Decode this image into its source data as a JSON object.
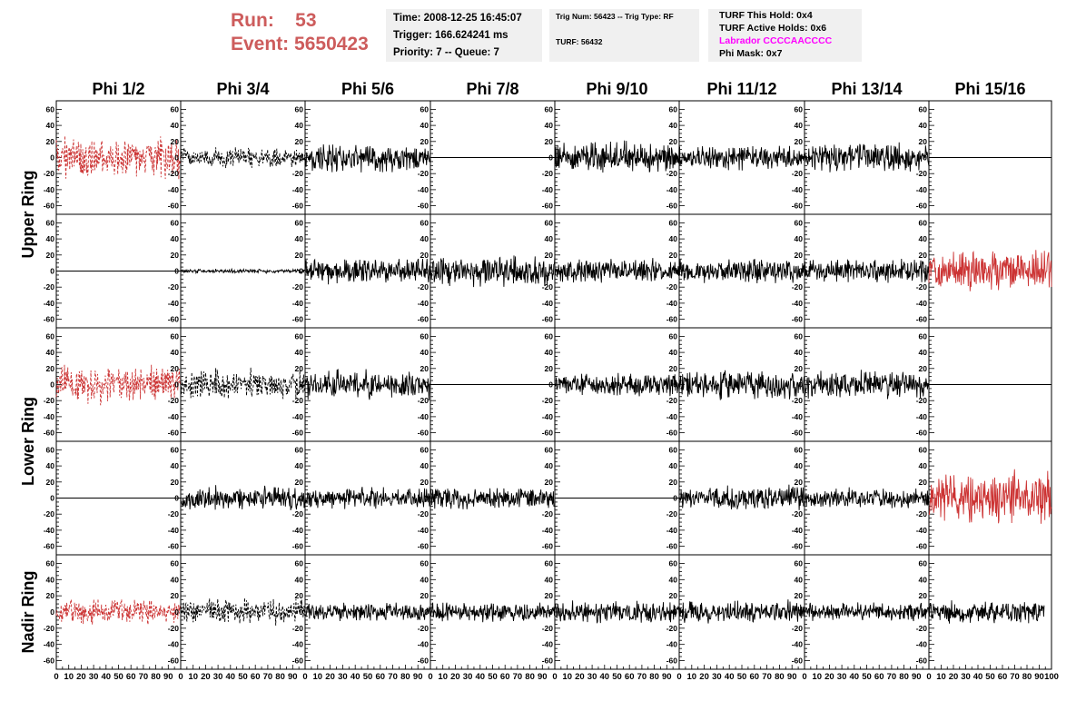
{
  "header": {
    "run_label": "Run:",
    "run_value": "53",
    "event_label": "Event:",
    "event_value": "5650423",
    "time": "Time: 2008-12-25 16:45:07",
    "trigger": "Trigger: 166.624241 ms",
    "priority": "Priority: 7 -- Queue: 7",
    "trig_num": "Trig Num: 56423 -- Trig Type: RF",
    "turf": "TURF: 56432",
    "turf_this_hold": "TURF This Hold: 0x4",
    "turf_active_holds": "TURF Active Holds: 0x6",
    "labrador": "Labrador CCCCAACCCC",
    "phi_mask": "Phi Mask: 0x7"
  },
  "colors": {
    "red": "#cc3333",
    "black": "#000000",
    "magenta": "#ff00ff",
    "run_text": "#cd5c5c"
  },
  "chart_data": {
    "type": "line",
    "title": "",
    "columns": [
      "Phi 1/2",
      "Phi 3/4",
      "Phi 5/6",
      "Phi 7/8",
      "Phi 9/10",
      "Phi 11/12",
      "Phi 13/14",
      "Phi 15/16"
    ],
    "ring_labels": [
      {
        "text": "Upper Ring",
        "rows": [
          0,
          1
        ]
      },
      {
        "text": "Lower Ring",
        "rows": [
          2,
          3
        ]
      },
      {
        "text": "Nadir Ring",
        "rows": [
          4,
          4
        ]
      }
    ],
    "ylim": [
      -65,
      65
    ],
    "yticks": [
      "60",
      "40",
      "20",
      "0",
      "-20",
      "-40",
      "-60"
    ],
    "xlim": [
      0,
      100
    ],
    "xticks": [
      "0",
      "10",
      "20",
      "30",
      "40",
      "50",
      "60",
      "70",
      "80",
      "90",
      "100"
    ],
    "samples_per_trace": 260,
    "grid": false,
    "panels": [
      [
        {
          "style": "red-dashed",
          "amp": 30,
          "xend": 100
        },
        {
          "style": "black-dashed",
          "amp": 14,
          "xend": 100
        },
        {
          "style": "black-solid",
          "amp": 20,
          "xend": 100
        },
        {
          "style": "flat",
          "amp": 0,
          "xend": 100
        },
        {
          "style": "black-solid",
          "amp": 22,
          "xend": 100
        },
        {
          "style": "black-solid",
          "amp": 18,
          "xend": 100
        },
        {
          "style": "black-solid",
          "amp": 20,
          "xend": 100
        },
        {
          "style": "flat",
          "amp": 0,
          "xend": 100
        }
      ],
      [
        {
          "style": "flat",
          "amp": 0,
          "xend": 100
        },
        {
          "style": "black-solid",
          "amp": 3,
          "xend": 100
        },
        {
          "style": "black-solid",
          "amp": 18,
          "xend": 100
        },
        {
          "style": "black-solid",
          "amp": 22,
          "xend": 100
        },
        {
          "style": "black-solid",
          "amp": 17,
          "xend": 100
        },
        {
          "style": "black-solid",
          "amp": 17,
          "xend": 100
        },
        {
          "style": "black-solid",
          "amp": 17,
          "xend": 100
        },
        {
          "style": "red-solid",
          "amp": 30,
          "xend": 100
        }
      ],
      [
        {
          "style": "red-dashed",
          "amp": 26,
          "xend": 100
        },
        {
          "style": "black-dashed",
          "amp": 22,
          "xend": 100
        },
        {
          "style": "black-solid",
          "amp": 20,
          "xend": 100
        },
        {
          "style": "flat",
          "amp": 0,
          "xend": 100
        },
        {
          "style": "black-solid",
          "amp": 16,
          "xend": 100
        },
        {
          "style": "black-solid",
          "amp": 20,
          "xend": 100
        },
        {
          "style": "black-solid",
          "amp": 20,
          "xend": 100
        },
        {
          "style": "flat",
          "amp": 0,
          "xend": 100
        }
      ],
      [
        {
          "style": "flat",
          "amp": 0,
          "xend": 100
        },
        {
          "style": "black-solid",
          "amp": 17,
          "xend": 100
        },
        {
          "style": "black-solid",
          "amp": 15,
          "xend": 100
        },
        {
          "style": "black-solid",
          "amp": 15,
          "xend": 100
        },
        {
          "style": "flat",
          "amp": 0,
          "xend": 100
        },
        {
          "style": "black-solid",
          "amp": 17,
          "xend": 100
        },
        {
          "style": "black-solid",
          "amp": 15,
          "xend": 100
        },
        {
          "style": "red-solid",
          "amp": 36,
          "xend": 100
        }
      ],
      [
        {
          "style": "red-dashed",
          "amp": 18,
          "xend": 100
        },
        {
          "style": "black-dashed",
          "amp": 18,
          "xend": 100
        },
        {
          "style": "black-solid",
          "amp": 13,
          "xend": 100
        },
        {
          "style": "black-solid",
          "amp": 15,
          "xend": 100
        },
        {
          "style": "black-solid",
          "amp": 15,
          "xend": 100
        },
        {
          "style": "black-solid",
          "amp": 16,
          "xend": 100
        },
        {
          "style": "black-solid",
          "amp": 13,
          "xend": 100
        },
        {
          "style": "black-solid",
          "amp": 15,
          "xend": 94
        }
      ]
    ]
  }
}
